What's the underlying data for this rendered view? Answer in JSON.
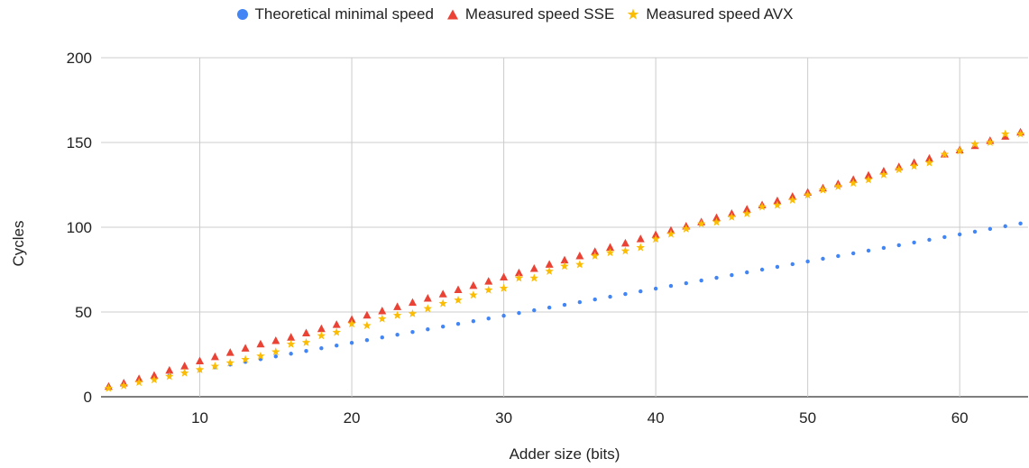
{
  "chart_data": {
    "type": "scatter",
    "title": "",
    "xlabel": "Adder size (bits)",
    "ylabel": "Cycles",
    "xlim": [
      3.5,
      64.5
    ],
    "ylim": [
      0,
      200
    ],
    "xticks": [
      10,
      20,
      30,
      40,
      50,
      60
    ],
    "yticks": [
      0,
      50,
      100,
      150,
      200
    ],
    "grid": true,
    "legend_position": "top-center",
    "series": [
      {
        "name": "Theoretical minimal speed",
        "marker": "circle",
        "color": "#4285f4",
        "x": [
          4,
          5,
          6,
          7,
          8,
          9,
          10,
          11,
          12,
          13,
          14,
          15,
          16,
          17,
          18,
          19,
          20,
          21,
          22,
          23,
          24,
          25,
          26,
          27,
          28,
          29,
          30,
          31,
          32,
          33,
          34,
          35,
          36,
          37,
          38,
          39,
          40,
          41,
          42,
          43,
          44,
          45,
          46,
          47,
          48,
          49,
          50,
          51,
          52,
          53,
          54,
          55,
          56,
          57,
          58,
          59,
          60,
          61,
          62,
          63,
          64
        ],
        "y": [
          6.2,
          7.8,
          9.4,
          11,
          12.6,
          14.2,
          15.8,
          17.4,
          19,
          20.6,
          22.2,
          23.8,
          25.4,
          27,
          28.6,
          30.2,
          31.8,
          33.4,
          35,
          36.6,
          38.2,
          39.8,
          41.4,
          43,
          44.6,
          46.2,
          47.8,
          49.4,
          51,
          52.6,
          54.2,
          55.8,
          57.4,
          59,
          60.6,
          62.2,
          63.8,
          65.4,
          67,
          68.6,
          70.2,
          71.8,
          73.4,
          75,
          76.6,
          78.2,
          79.8,
          81.4,
          83,
          84.6,
          86.2,
          87.8,
          89.4,
          91,
          92.6,
          94.2,
          95.8,
          97.4,
          99,
          100.6,
          102.2
        ]
      },
      {
        "name": "Measured speed SSE",
        "marker": "triangle",
        "color": "#ea4335",
        "x": [
          4,
          5,
          6,
          7,
          8,
          9,
          10,
          11,
          12,
          13,
          14,
          15,
          16,
          17,
          18,
          19,
          20,
          21,
          22,
          23,
          24,
          25,
          26,
          27,
          28,
          29,
          30,
          31,
          32,
          33,
          34,
          35,
          36,
          37,
          38,
          39,
          40,
          41,
          42,
          43,
          44,
          45,
          46,
          47,
          48,
          49,
          50,
          51,
          52,
          53,
          54,
          55,
          56,
          57,
          58,
          59,
          60,
          61,
          62,
          63,
          64
        ],
        "y": [
          6,
          8,
          10.5,
          12.5,
          15.5,
          18,
          21,
          23.5,
          26,
          28.5,
          31,
          33,
          35,
          37.5,
          40,
          42.5,
          45.5,
          48,
          50.5,
          53,
          55.5,
          58,
          60.5,
          63,
          65.5,
          68,
          70.5,
          73,
          75.5,
          78,
          80.5,
          83,
          85.5,
          88,
          90.5,
          93,
          95.5,
          98,
          100.5,
          103,
          105.5,
          108,
          110.5,
          113,
          115.5,
          118,
          120.5,
          123,
          125.5,
          128,
          130.5,
          133,
          135.5,
          138,
          140.5,
          143,
          145.5,
          148,
          151,
          153.5,
          156
        ]
      },
      {
        "name": "Measured speed AVX",
        "marker": "star",
        "color": "#fbbc04",
        "x": [
          4,
          5,
          6,
          7,
          8,
          9,
          10,
          11,
          12,
          13,
          14,
          15,
          16,
          17,
          18,
          19,
          20,
          21,
          22,
          23,
          24,
          25,
          26,
          27,
          28,
          29,
          30,
          31,
          32,
          33,
          34,
          35,
          36,
          37,
          38,
          39,
          40,
          41,
          42,
          43,
          44,
          45,
          46,
          47,
          48,
          49,
          50,
          51,
          52,
          53,
          54,
          55,
          56,
          57,
          58,
          59,
          60,
          61,
          62,
          63,
          64
        ],
        "y": [
          5,
          6.5,
          8.5,
          10,
          12,
          14,
          16,
          18,
          20,
          22,
          24,
          26.5,
          31,
          32,
          36,
          38,
          43,
          42,
          46,
          48,
          49,
          52,
          55,
          57,
          60,
          63,
          64,
          70,
          70,
          74,
          77,
          78,
          83,
          85,
          86,
          88,
          93,
          96,
          99,
          102,
          103,
          106,
          108,
          112,
          113,
          116,
          119,
          122,
          124,
          126,
          128,
          131,
          134,
          136,
          138,
          143,
          145,
          149,
          150,
          155,
          155
        ]
      }
    ]
  }
}
